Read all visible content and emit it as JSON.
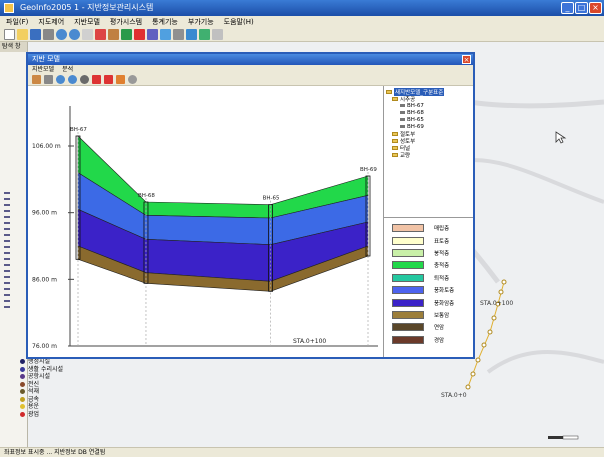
{
  "app": {
    "title": "GeoInfo2005 1 - 지반정보관리시스템"
  },
  "menu": [
    "파일(F)",
    "지도제어",
    "지반모델",
    "평가시스템",
    "통계기능",
    "부가기능",
    "도움말(H)"
  ],
  "panels": {
    "left_title": "탐색 창"
  },
  "profile_window": {
    "title": "지반 모델",
    "menu": [
      "지반모델",
      "분석"
    ],
    "boreholes": [
      {
        "name": "BH-67",
        "dist": 0,
        "ground": 107.5,
        "bounds": [
          107.5,
          102.0,
          96.5,
          91.0,
          89.0
        ]
      },
      {
        "name": "BH-68",
        "dist": 30,
        "ground": 97.6,
        "bounds": [
          97.6,
          95.6,
          92.0,
          87.0,
          85.4
        ]
      },
      {
        "name": "BH-65",
        "dist": 85,
        "ground": 97.2,
        "bounds": [
          97.2,
          95.2,
          91.2,
          85.7,
          84.2
        ]
      },
      {
        "name": "BH-69",
        "dist": 128,
        "ground": 101.5,
        "bounds": [
          101.5,
          98.6,
          94.6,
          91.0,
          89.5
        ]
      }
    ],
    "y_ticks": [
      "106.00 m",
      "96.00 m",
      "86.00 m",
      "76.00 m"
    ],
    "station_label": "STA.0+100",
    "tree": {
      "root": "새지반모델_구분표준",
      "group": "시추공",
      "items": [
        "BH-67",
        "BH-68",
        "BH-65",
        "BH-69"
      ],
      "others": [
        "절토부",
        "성토부",
        "터널",
        "교량"
      ]
    },
    "legend": [
      {
        "label": "매립층",
        "color": "#f1c3a6"
      },
      {
        "label": "표토층",
        "color": "#ffffcc"
      },
      {
        "label": "붕적층",
        "color": "#c9f0a8"
      },
      {
        "label": "충적층",
        "color": "#22d84a"
      },
      {
        "label": "퇴적층",
        "color": "#24c8a0"
      },
      {
        "label": "풍화토층",
        "color": "#4d63ee"
      },
      {
        "label": "풍화암층",
        "color": "#3b22c8"
      },
      {
        "label": "보통암",
        "color": "#9c7e3a"
      },
      {
        "label": "연암",
        "color": "#5a472a"
      },
      {
        "label": "경암",
        "color": "#6b3a2a"
      }
    ]
  },
  "map": {
    "stations": [
      "STA.0+100",
      "STA.0+0"
    ],
    "legend_items": [
      {
        "label": "행정시설",
        "color": "#222266"
      },
      {
        "label": "생활 수리시설",
        "color": "#3a3a9a"
      },
      {
        "label": "공항시설",
        "color": "#5a3a8a"
      },
      {
        "label": "전신",
        "color": "#8a4a2a"
      },
      {
        "label": "석재",
        "color": "#6a5a2a"
      },
      {
        "label": "금속",
        "color": "#c0a020"
      },
      {
        "label": "용운",
        "color": "#e0c030"
      },
      {
        "label": "광업",
        "color": "#d02a2a"
      }
    ]
  },
  "status": {
    "left": "좌표정보 표시중 ... 지반정보 DB 연결됨"
  }
}
